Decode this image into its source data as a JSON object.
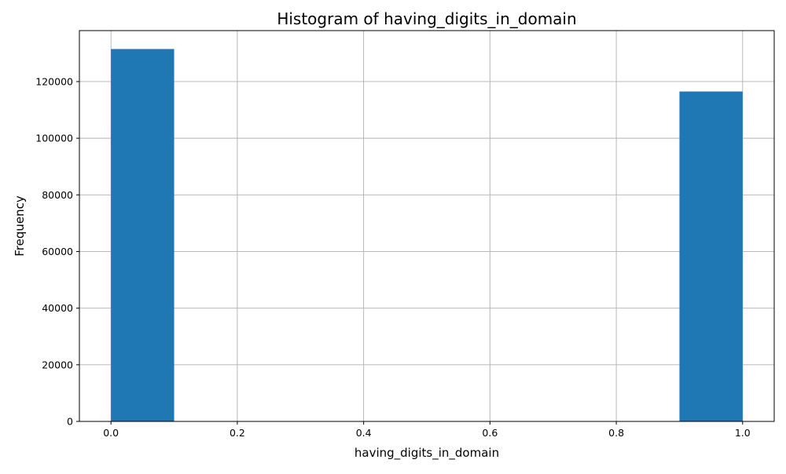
{
  "chart_data": {
    "type": "bar",
    "title": "Histogram of having_digits_in_domain",
    "xlabel": "having_digits_in_domain",
    "ylabel": "Frequency",
    "bins": [
      {
        "x0": 0.0,
        "x1": 0.1,
        "count": 131500
      },
      {
        "x0": 0.1,
        "x1": 0.2,
        "count": 0
      },
      {
        "x0": 0.2,
        "x1": 0.3,
        "count": 0
      },
      {
        "x0": 0.3,
        "x1": 0.4,
        "count": 0
      },
      {
        "x0": 0.4,
        "x1": 0.5,
        "count": 0
      },
      {
        "x0": 0.5,
        "x1": 0.6,
        "count": 0
      },
      {
        "x0": 0.6,
        "x1": 0.7,
        "count": 0
      },
      {
        "x0": 0.7,
        "x1": 0.8,
        "count": 0
      },
      {
        "x0": 0.8,
        "x1": 0.9,
        "count": 0
      },
      {
        "x0": 0.9,
        "x1": 1.0,
        "count": 116500
      }
    ],
    "xlim": [
      -0.05,
      1.05
    ],
    "ylim": [
      0,
      138000
    ],
    "xticks": [
      0.0,
      0.2,
      0.4,
      0.6,
      0.8,
      1.0
    ],
    "xtick_labels": [
      "0.0",
      "0.2",
      "0.4",
      "0.6",
      "0.8",
      "1.0"
    ],
    "yticks": [
      0,
      20000,
      40000,
      60000,
      80000,
      100000,
      120000
    ],
    "ytick_labels": [
      "0",
      "20000",
      "40000",
      "60000",
      "80000",
      "100000",
      "120000"
    ],
    "grid": true,
    "bar_color": "#1f77b4"
  }
}
